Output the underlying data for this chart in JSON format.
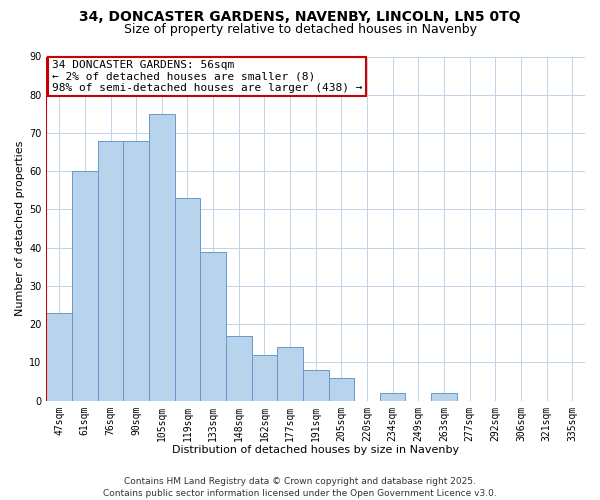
{
  "title_line1": "34, DONCASTER GARDENS, NAVENBY, LINCOLN, LN5 0TQ",
  "title_line2": "Size of property relative to detached houses in Navenby",
  "xlabel": "Distribution of detached houses by size in Navenby",
  "ylabel": "Number of detached properties",
  "categories": [
    "47sqm",
    "61sqm",
    "76sqm",
    "90sqm",
    "105sqm",
    "119sqm",
    "133sqm",
    "148sqm",
    "162sqm",
    "177sqm",
    "191sqm",
    "205sqm",
    "220sqm",
    "234sqm",
    "249sqm",
    "263sqm",
    "277sqm",
    "292sqm",
    "306sqm",
    "321sqm",
    "335sqm"
  ],
  "values": [
    23,
    60,
    68,
    68,
    75,
    53,
    39,
    17,
    12,
    14,
    8,
    6,
    0,
    2,
    0,
    2,
    0,
    0,
    0,
    0,
    0
  ],
  "bar_color": "#b8d4ec",
  "bar_edge_color": "#6699cc",
  "highlight_line_color": "#cc0000",
  "annotation_title": "34 DONCASTER GARDENS: 56sqm",
  "annotation_line1": "← 2% of detached houses are smaller (8)",
  "annotation_line2": "98% of semi-detached houses are larger (438) →",
  "annotation_box_color": "#ffffff",
  "annotation_box_edge_color": "#cc0000",
  "ylim": [
    0,
    90
  ],
  "yticks": [
    0,
    10,
    20,
    30,
    40,
    50,
    60,
    70,
    80,
    90
  ],
  "footer_line1": "Contains HM Land Registry data © Crown copyright and database right 2025.",
  "footer_line2": "Contains public sector information licensed under the Open Government Licence v3.0.",
  "background_color": "#ffffff",
  "grid_color": "#c0d4e8",
  "title_fontsize": 10,
  "subtitle_fontsize": 9,
  "axis_label_fontsize": 8,
  "tick_fontsize": 7,
  "annotation_fontsize": 8,
  "footer_fontsize": 6.5
}
